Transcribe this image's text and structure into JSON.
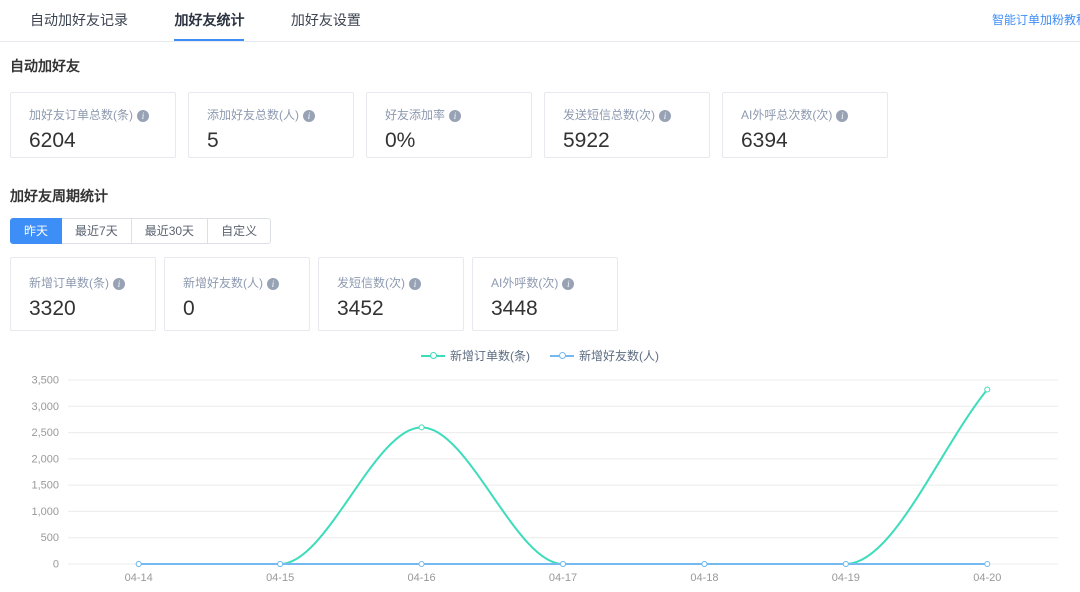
{
  "tabs": {
    "items": [
      {
        "label": "自动加好友记录",
        "active": false
      },
      {
        "label": "加好友统计",
        "active": true
      },
      {
        "label": "加好友设置",
        "active": false
      }
    ]
  },
  "header": {
    "tutorial_link": "智能订单加粉教程"
  },
  "overview": {
    "title": "自动加好友",
    "cards": [
      {
        "label": "加好友订单总数(条)",
        "value": "6204"
      },
      {
        "label": "添加好友总数(人)",
        "value": "5"
      },
      {
        "label": "好友添加率",
        "value": "0%"
      },
      {
        "label": "发送短信总数(次)",
        "value": "5922"
      },
      {
        "label": "AI外呼总次数(次)",
        "value": "6394"
      }
    ]
  },
  "period": {
    "title": "加好友周期统计",
    "filters": [
      {
        "label": "昨天",
        "active": true
      },
      {
        "label": "最近7天",
        "active": false
      },
      {
        "label": "最近30天",
        "active": false
      },
      {
        "label": "自定义",
        "active": false
      }
    ],
    "cards": [
      {
        "label": "新增订单数(条)",
        "value": "3320"
      },
      {
        "label": "新增好友数(人)",
        "value": "0"
      },
      {
        "label": "发短信数(次)",
        "value": "3452"
      },
      {
        "label": "AI外呼数(次)",
        "value": "3448"
      }
    ]
  },
  "chart_data": {
    "type": "line",
    "title": "",
    "categories": [
      "04-14",
      "04-15",
      "04-16",
      "04-17",
      "04-18",
      "04-19",
      "04-20"
    ],
    "series": [
      {
        "name": "新增订单数(条)",
        "color": "#3ddcbb",
        "values": [
          0,
          0,
          2600,
          0,
          0,
          0,
          3320
        ]
      },
      {
        "name": "新增好友数(人)",
        "color": "#74b9f0",
        "values": [
          0,
          0,
          0,
          0,
          0,
          0,
          0
        ]
      }
    ],
    "xlabel": "",
    "ylabel": "",
    "ylim": [
      0,
      3500
    ],
    "ytick_step": 500,
    "grid": true,
    "smooth": true,
    "legend_position": "top"
  },
  "colors": {
    "accent": "#3e8ef7",
    "grid_line": "#ececec",
    "axis_label": "#999999"
  }
}
